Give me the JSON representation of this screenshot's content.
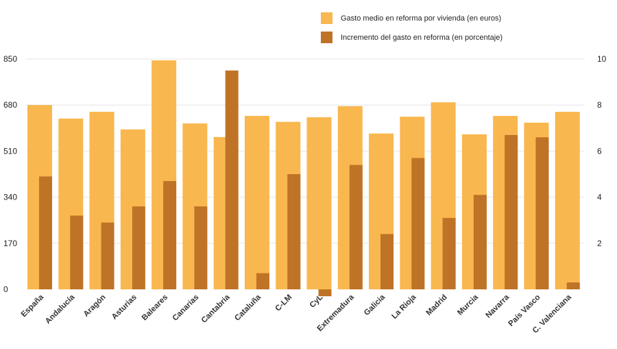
{
  "chart_data": {
    "type": "bar",
    "categories": [
      "España",
      "Andalucía",
      "Aragón",
      "Asturias",
      "Baleares",
      "Canarias",
      "Cantabria",
      "Cataluña",
      "C-LM",
      "CyL",
      "Extremadura",
      "Galicia",
      "La Rioja",
      "Madrid",
      "Murcia",
      "Navarra",
      "País Vasco",
      "C. Valenciana"
    ],
    "series": [
      {
        "name": "Gasto medio en reforma por vivienda (en euros)",
        "axis": "left",
        "color": "#F9B74F",
        "values": [
          680,
          630,
          655,
          590,
          845,
          612,
          562,
          640,
          618,
          635,
          676,
          575,
          637,
          690,
          572,
          640,
          615,
          655
        ]
      },
      {
        "name": "Incremento del gasto en reforma (en porcentaje)",
        "axis": "right",
        "color": "#BF7326",
        "values": [
          4.9,
          3.2,
          2.9,
          3.6,
          4.7,
          3.6,
          9.5,
          0.7,
          5.0,
          -0.3,
          5.4,
          2.4,
          5.7,
          3.1,
          4.1,
          6.7,
          6.6,
          0.3
        ]
      }
    ],
    "y_left": {
      "min": 0,
      "max": 850,
      "ticks": [
        "0",
        "170",
        "340",
        "510",
        "680",
        "850"
      ]
    },
    "y_right": {
      "min": 0,
      "max": 10,
      "ticks": [
        "2",
        "4",
        "6",
        "8",
        "10"
      ]
    },
    "grid": true,
    "legend_position": "top-right"
  }
}
